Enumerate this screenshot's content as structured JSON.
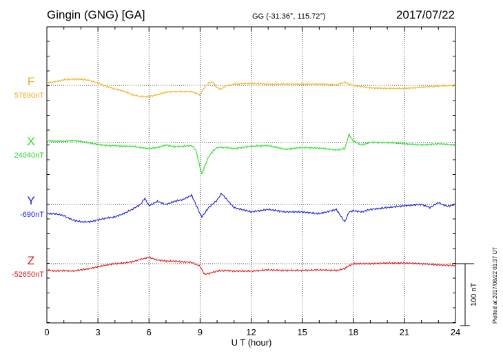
{
  "header": {
    "title": "Gingin (GNG)  [GA]",
    "coords": "GG (-31.36°, 115.72°)",
    "date": "2017/07/22"
  },
  "footer": {
    "plotted": "Plotted at 2017/08/22 01:37 UT"
  },
  "chart_data": {
    "type": "line",
    "xlabel": "U T (hour)",
    "xlim": [
      0,
      24
    ],
    "xticks": [
      "0",
      "3",
      "6",
      "9",
      "12",
      "15",
      "18",
      "21",
      "24"
    ],
    "scale_bar": {
      "label": "100 nT",
      "value": 100
    },
    "grid": true,
    "series": [
      {
        "name": "F",
        "baseline_label": "57890nT",
        "color": "#f2b01e",
        "x": [
          0,
          0.5,
          1,
          1.5,
          2,
          2.5,
          3,
          3.5,
          4,
          4.5,
          5,
          5.5,
          6,
          6.5,
          7,
          7.5,
          8,
          8.5,
          9,
          9.25,
          9.5,
          9.75,
          10,
          10.25,
          10.5,
          11,
          11.5,
          12,
          13,
          14,
          15,
          16,
          17,
          17.5,
          17.75,
          18,
          18.5,
          19,
          20,
          21,
          22,
          23,
          24
        ],
        "y": [
          4,
          6,
          9,
          10,
          10,
          8,
          4,
          -2,
          -6,
          -9,
          -15,
          -18,
          -18,
          -15,
          -11,
          -10,
          -10,
          -10,
          -15,
          -4,
          4,
          5,
          -4,
          -6,
          -1,
          2,
          3,
          3,
          2,
          2,
          2,
          2,
          1,
          5,
          2,
          0,
          -2,
          -4,
          -5,
          -5,
          -3,
          -1,
          0
        ]
      },
      {
        "name": "X",
        "baseline_label": "24040nT",
        "color": "#22dd22",
        "x": [
          0,
          0.5,
          1,
          1.5,
          2,
          2.5,
          3,
          3.5,
          4,
          4.5,
          5,
          5.5,
          6,
          6.5,
          7,
          7.5,
          8,
          8.5,
          8.75,
          9,
          9.1,
          9.25,
          9.5,
          9.75,
          10,
          10.5,
          11,
          12,
          13,
          14,
          15,
          16,
          17,
          17.5,
          17.75,
          18,
          18.5,
          19,
          20,
          21,
          22,
          23,
          24
        ],
        "y": [
          3,
          2,
          2,
          3,
          2,
          -1,
          -3,
          -5,
          -5,
          -6,
          -6,
          -8,
          -10,
          -8,
          -4,
          -7,
          -6,
          -5,
          -12,
          -40,
          -51,
          -40,
          -23,
          -14,
          -8,
          -8,
          -10,
          -6,
          -5,
          -11,
          -8,
          -9,
          -12,
          -10,
          13,
          2,
          -4,
          0,
          0,
          -2,
          -4,
          -2,
          -4
        ]
      },
      {
        "name": "Y",
        "baseline_label": "-690nT",
        "color": "#1a1ae0",
        "x": [
          0,
          0.5,
          1,
          1.5,
          2,
          2.5,
          3,
          3.5,
          4,
          4.5,
          5,
          5.5,
          5.75,
          6,
          6.5,
          7,
          7.5,
          8,
          8.5,
          9,
          9.1,
          9.25,
          9.5,
          10,
          10.25,
          10.5,
          11,
          12,
          13,
          14,
          15,
          16,
          17,
          17.5,
          17.75,
          18,
          18.5,
          19,
          20,
          21,
          22,
          22.5,
          23,
          23.5,
          24
        ],
        "y": [
          -15,
          -15,
          -18,
          -25,
          -28,
          -28,
          -25,
          -22,
          -20,
          -15,
          -8,
          0,
          10,
          -2,
          5,
          0,
          5,
          8,
          15,
          -15,
          -20,
          -15,
          -5,
          7,
          18,
          10,
          -5,
          -12,
          -8,
          -12,
          -12,
          -15,
          -8,
          -28,
          -12,
          -10,
          -12,
          -8,
          -5,
          -2,
          0,
          -5,
          3,
          -3,
          0
        ]
      },
      {
        "name": "Z",
        "baseline_label": "-52650nT",
        "color": "#e01a1a",
        "x": [
          0,
          0.5,
          1,
          1.5,
          2,
          2.5,
          3,
          3.5,
          4,
          4.5,
          5,
          5.5,
          6,
          6.5,
          7,
          7.5,
          8,
          8.5,
          9,
          9.25,
          9.5,
          10,
          10.5,
          11,
          12,
          13,
          14,
          15,
          16,
          17,
          17.5,
          17.75,
          18,
          19,
          20,
          21,
          22,
          23,
          24
        ],
        "y": [
          -10,
          -12,
          -11,
          -12,
          -10,
          -8,
          -5,
          -2,
          0,
          1,
          3,
          7,
          10,
          6,
          4,
          4,
          3,
          2,
          -4,
          -17,
          -16,
          -12,
          -11,
          -12,
          -12,
          -10,
          -11,
          -11,
          -10,
          -11,
          -8,
          -3,
          0,
          0,
          1,
          1,
          0,
          -2,
          -3
        ]
      }
    ]
  }
}
